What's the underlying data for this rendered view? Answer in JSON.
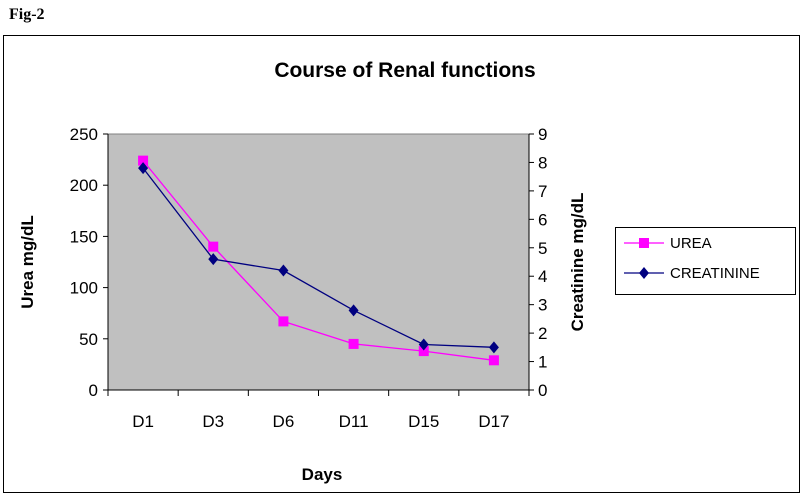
{
  "figure_label": "Fig-2",
  "chart_data": {
    "type": "line",
    "title": "Course of Renal functions",
    "xlabel": "Days",
    "ylabel": "Urea mg/dL",
    "y2label": "Creatinine mg/dL",
    "categories": [
      "D1",
      "D3",
      "D6",
      "D11",
      "D15",
      "D17"
    ],
    "ylim": [
      0,
      250
    ],
    "yticks": [
      0,
      50,
      100,
      150,
      200,
      250
    ],
    "y2lim": [
      0,
      9
    ],
    "y2ticks": [
      0,
      1,
      2,
      3,
      4,
      5,
      6,
      7,
      8,
      9
    ],
    "legend_position": "right",
    "plot_background": "#c0c0c0",
    "series": [
      {
        "name": "UREA",
        "axis": "left",
        "marker": "square",
        "color": "#ff00ff",
        "values": [
          224,
          140,
          67,
          45,
          38,
          29
        ]
      },
      {
        "name": "CREATININE",
        "axis": "right",
        "marker": "diamond",
        "color": "#000080",
        "values": [
          7.8,
          4.6,
          4.2,
          2.8,
          1.6,
          1.5
        ]
      }
    ]
  }
}
